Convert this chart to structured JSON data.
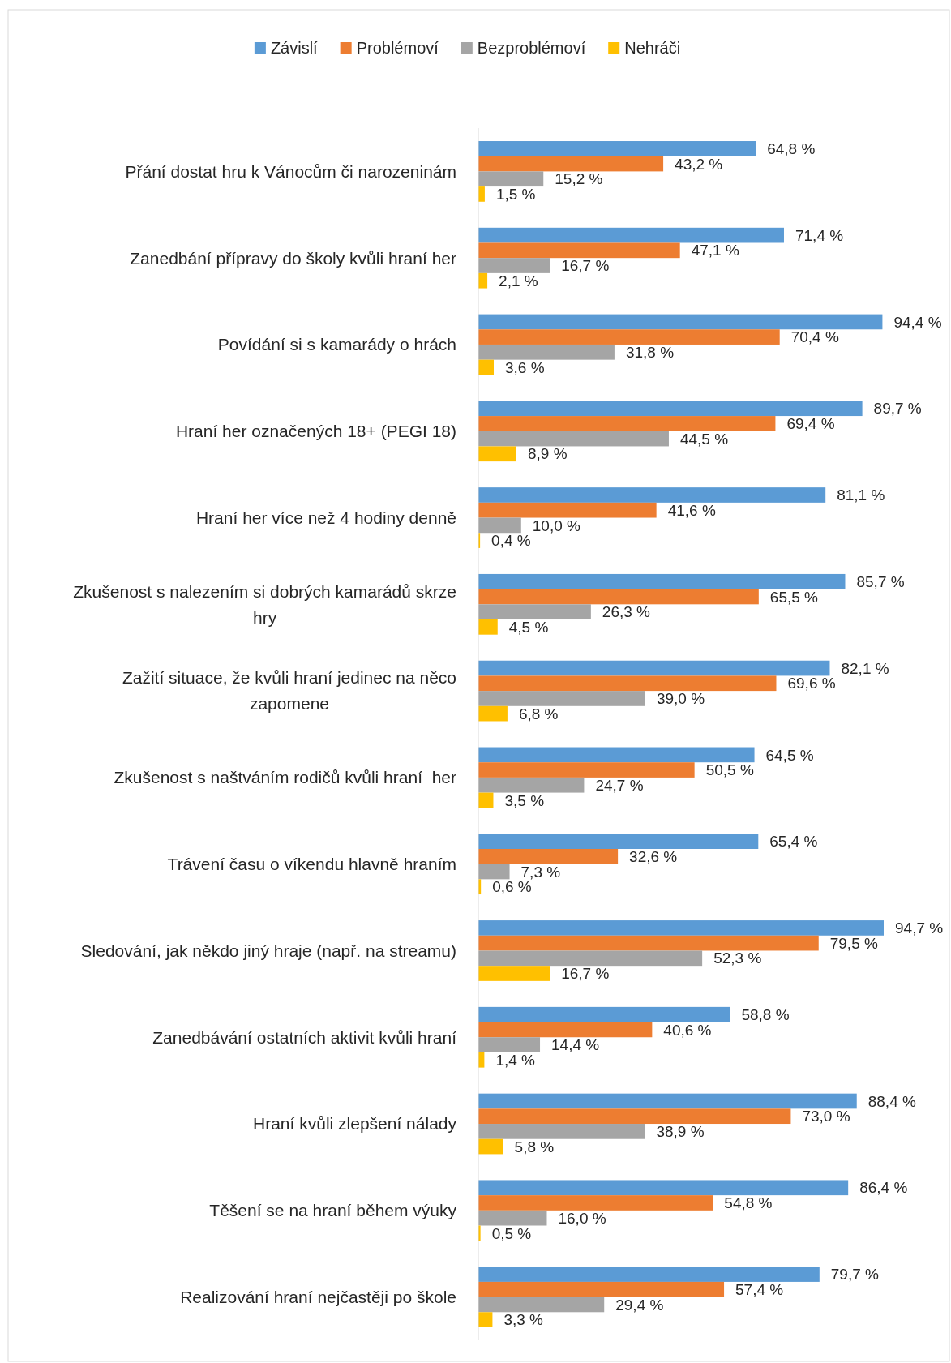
{
  "chart_data": {
    "type": "bar",
    "orientation": "horizontal",
    "legend": "top",
    "categories": [
      "Přání dostat hru k Vánocům či narozeninám",
      "Zanedbání přípravy do školy kvůli hraní her",
      "Povídání si s kamarády o hrách",
      "Hraní her označených 18+ (PEGI 18)",
      "Hraní her více než 4 hodiny denně",
      "Zkušenost s nalezením si dobrých kamarádů skrze hry",
      "Zažití situace, že kvůli hraní jedinec na něco zapomene",
      "Zkušenost s naštváním rodičů kvůli hraní  her",
      "Trávení času o víkendu hlavně hraním",
      "Sledování, jak někdo jiný hraje (např. na streamu)",
      "Zanedbávání ostatních aktivit kvůli hraní",
      "Hraní kvůli zlepšení nálady",
      "Těšení se na hraní během výuky",
      "Realizování hraní nejčastěji po škole"
    ],
    "series": [
      {
        "name": "Závislí",
        "color": "#5b9bd5",
        "values": [
          64.8,
          71.4,
          94.4,
          89.7,
          81.1,
          85.7,
          82.1,
          64.5,
          65.4,
          94.7,
          58.8,
          88.4,
          86.4,
          79.7
        ],
        "value_labels": [
          "64,8 %",
          "71,4 %",
          "94,4 %",
          "89,7 %",
          "81,1 %",
          "85,7 %",
          "82,1 %",
          "64,5 %",
          "65,4 %",
          "94,7 %",
          "58,8 %",
          "88,4 %",
          "86,4 %",
          "79,7 %"
        ]
      },
      {
        "name": "Problémoví",
        "color": "#ed7d31",
        "values": [
          43.2,
          47.1,
          70.4,
          69.4,
          41.6,
          65.5,
          69.6,
          50.5,
          32.6,
          79.5,
          40.6,
          73.0,
          54.8,
          57.4
        ],
        "value_labels": [
          "43,2 %",
          "47,1 %",
          "70,4 %",
          "69,4 %",
          "41,6 %",
          "65,5 %",
          "69,6 %",
          "50,5 %",
          "32,6 %",
          "79,5 %",
          "40,6 %",
          "73,0 %",
          "54,8 %",
          "57,4 %"
        ]
      },
      {
        "name": "Bezproblémoví",
        "color": "#a5a5a5",
        "values": [
          15.2,
          16.7,
          31.8,
          44.5,
          10.0,
          26.3,
          39.0,
          24.7,
          7.3,
          52.3,
          14.4,
          38.9,
          16.0,
          29.4
        ],
        "value_labels": [
          "15,2 %",
          "16,7 %",
          "31,8 %",
          "44,5 %",
          "10,0 %",
          "26,3 %",
          "39,0 %",
          "24,7 %",
          "7,3 %",
          "52,3 %",
          "14,4 %",
          "38,9 %",
          "16,0 %",
          "29,4 %"
        ]
      },
      {
        "name": "Nehráči",
        "color": "#ffc000",
        "values": [
          1.5,
          2.1,
          3.6,
          8.9,
          0.4,
          4.5,
          6.8,
          3.5,
          0.6,
          16.7,
          1.4,
          5.8,
          0.5,
          3.3
        ],
        "value_labels": [
          "1,5 %",
          "2,1 %",
          "3,6 %",
          "8,9 %",
          "0,4 %",
          "4,5 %",
          "6,8 %",
          "3,5 %",
          "0,6 %",
          "16,7 %",
          "1,4 %",
          "5,8 %",
          "0,5 %",
          "3,3 %"
        ]
      }
    ]
  }
}
